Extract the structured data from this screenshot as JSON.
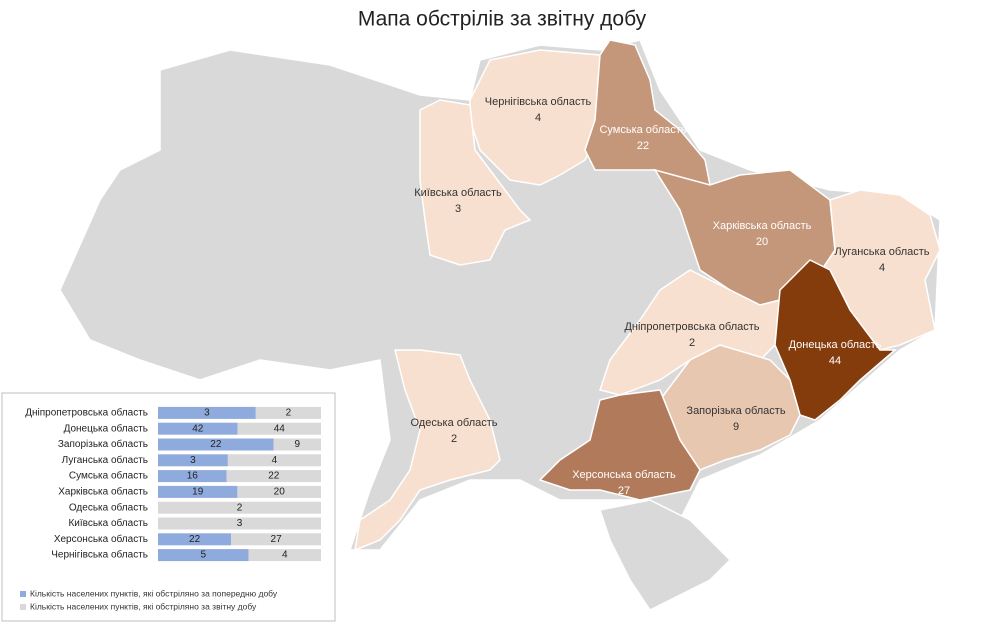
{
  "title": "Мапа обстрілів за звітну добу",
  "regions": [
    {
      "name": "Чернігівська область",
      "value": 4,
      "color": "#f8e0d0"
    },
    {
      "name": "Сумська область",
      "value": 22,
      "color": "#c4967a"
    },
    {
      "name": "Київська область",
      "value": 3,
      "color": "#f8e0d0"
    },
    {
      "name": "Харківська область",
      "value": 20,
      "color": "#c4967a"
    },
    {
      "name": "Луганська область",
      "value": 4,
      "color": "#f8e0d0"
    },
    {
      "name": "Дніпропетровська область",
      "value": 2,
      "color": "#f8e0d0"
    },
    {
      "name": "Донецька область",
      "value": 44,
      "color": "#843c0c"
    },
    {
      "name": "Запорізька область",
      "value": 9,
      "color": "#e8c7b1"
    },
    {
      "name": "Одеська область",
      "value": 2,
      "color": "#f8e0d0"
    },
    {
      "name": "Херсонська область",
      "value": 27,
      "color": "#b17b5b"
    }
  ],
  "chart_data": {
    "type": "bar",
    "orientation": "horizontal",
    "stacking": "percent",
    "categories": [
      "Дніпропетровська область",
      "Донецька область",
      "Запорізька область",
      "Луганська область",
      "Сумська область",
      "Харківська область",
      "Одеська область",
      "Київська область",
      "Херсонська область",
      "Чернігівська область"
    ],
    "series": [
      {
        "name": "Кількість населених пунктів, які обстріляно за попередню добу",
        "color": "#8faadc",
        "values": [
          3,
          42,
          22,
          3,
          16,
          19,
          null,
          null,
          22,
          5
        ]
      },
      {
        "name": "Кількість населених пунктів, які обстріляно за звітну добу",
        "color": "#d9d9d9",
        "values": [
          2,
          44,
          9,
          4,
          22,
          20,
          2,
          3,
          27,
          4
        ]
      }
    ]
  }
}
